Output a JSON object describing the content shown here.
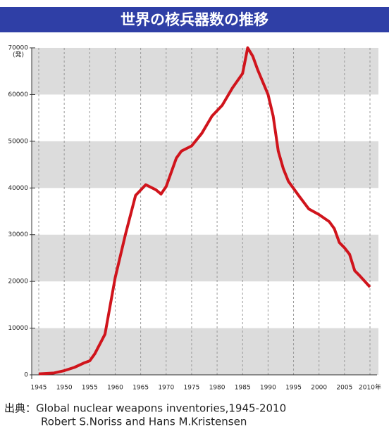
{
  "chart_data": {
    "type": "line",
    "title": "世界の核兵器数の推移",
    "y_unit": "(発)",
    "x": [
      1945,
      1948,
      1950,
      1952,
      1954,
      1955,
      1956,
      1958,
      1960,
      1962,
      1964,
      1966,
      1968,
      1969,
      1970,
      1972,
      1973,
      1975,
      1977,
      1979,
      1981,
      1983,
      1985,
      1986,
      1987,
      1988,
      1990,
      1991,
      1992,
      1993,
      1994,
      1996,
      1998,
      2000,
      2002,
      2003,
      2004,
      2005,
      2006,
      2007,
      2008,
      2010
    ],
    "series": [
      {
        "name": "核兵器数",
        "color": "#d0141c",
        "values": [
          200,
          400,
          900,
          1600,
          2600,
          3000,
          4500,
          8700,
          20800,
          30000,
          38400,
          40700,
          39600,
          38700,
          40300,
          46400,
          47900,
          49000,
          51700,
          55400,
          57700,
          61400,
          64500,
          70000,
          68200,
          65200,
          60000,
          55400,
          47900,
          44100,
          41400,
          38400,
          35500,
          34300,
          32800,
          31300,
          28300,
          27200,
          25800,
          22300,
          21200,
          18800
        ]
      }
    ],
    "xlim": [
      1945,
      2010
    ],
    "xticks": [
      1945,
      1950,
      1955,
      1960,
      1965,
      1970,
      1975,
      1980,
      1985,
      1990,
      1995,
      2000,
      2005,
      {
        "value": 2010,
        "label": "2010年"
      }
    ],
    "ylim": [
      0,
      70000
    ],
    "yticks": [
      0,
      10000,
      20000,
      30000,
      40000,
      50000,
      60000,
      70000
    ],
    "bands": true,
    "band_color": "#dcdcdc",
    "grid": true,
    "source_lines": [
      "出典：Global nuclear weapons inventories,1945-2010",
      "Robert S.Noriss and Hans M.Kristensen"
    ]
  }
}
